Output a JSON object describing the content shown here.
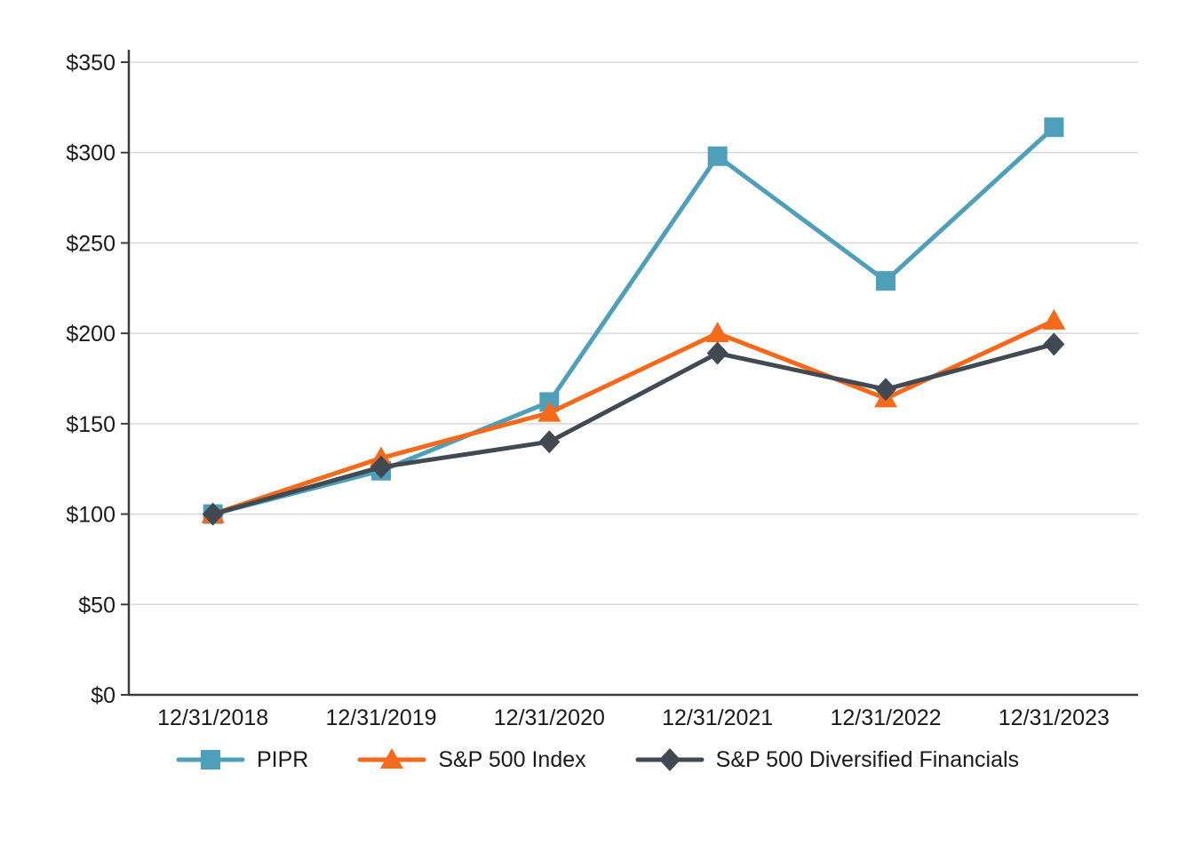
{
  "chart_data": {
    "type": "line",
    "title": "",
    "xlabel": "",
    "ylabel": "",
    "categories": [
      "12/31/2018",
      "12/31/2019",
      "12/31/2020",
      "12/31/2021",
      "12/31/2022",
      "12/31/2023"
    ],
    "series": [
      {
        "name": "PIPR",
        "marker": "square",
        "color": "#4D9FBA",
        "values": [
          100,
          124,
          162,
          298,
          229,
          314
        ]
      },
      {
        "name": "S&P 500 Index",
        "marker": "triangle",
        "color": "#F6691A",
        "values": [
          100,
          131,
          156,
          200,
          164,
          207
        ]
      },
      {
        "name": "S&P 500 Diversified Financials",
        "marker": "diamond",
        "color": "#414A52",
        "values": [
          100,
          126,
          140,
          189,
          169,
          194
        ]
      }
    ],
    "ylim": [
      0,
      350
    ],
    "ytick_interval": 50,
    "ytick_prefix": "$",
    "grid": "horizontal",
    "gridline_color": "#D8D8D8",
    "axis_color": "#3C3C3C",
    "legend_position": "bottom"
  }
}
